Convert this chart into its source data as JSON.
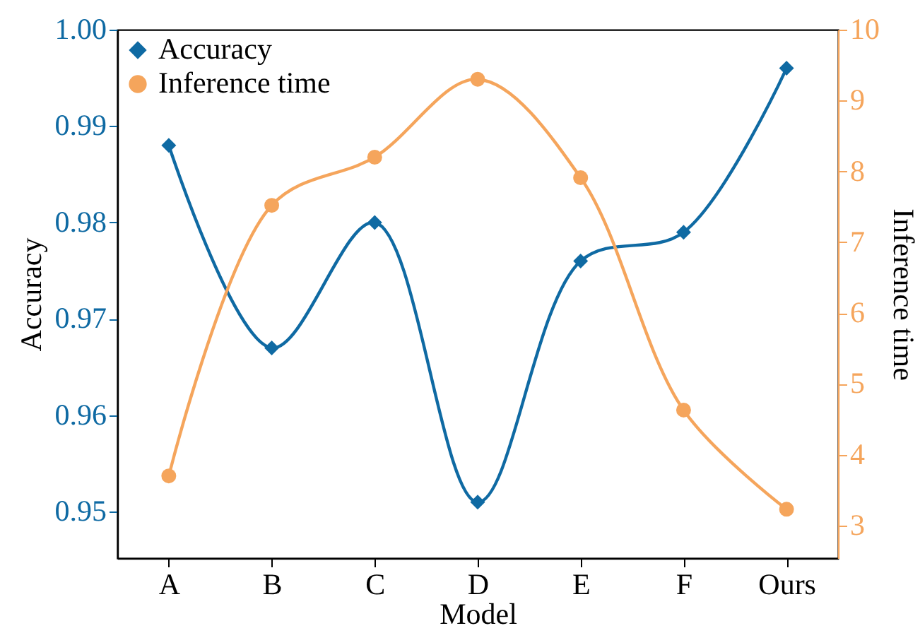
{
  "chart_data": {
    "type": "line",
    "xlabel": "Model",
    "ylabel": "Accuracy",
    "y2label": "Inference time",
    "categories": [
      "A",
      "B",
      "C",
      "D",
      "E",
      "F",
      "Ours"
    ],
    "series": [
      {
        "name": "Accuracy",
        "color": "#0f6aa3",
        "marker": "diamond",
        "values": [
          0.988,
          0.967,
          0.98,
          0.951,
          0.976,
          0.979,
          0.996
        ]
      },
      {
        "name": "Inference time",
        "color": "#f5a55c",
        "marker": "circle",
        "axis": "y2",
        "values": [
          3.7,
          7.52,
          8.2,
          9.3,
          7.91,
          4.63,
          3.23
        ]
      }
    ],
    "ylim": [
      0.9452,
      1.0
    ],
    "yticks": [
      {
        "value": 0.95,
        "label": "0.95"
      },
      {
        "value": 0.96,
        "label": "0.96"
      },
      {
        "value": 0.97,
        "label": "0.97"
      },
      {
        "value": 0.98,
        "label": "0.98"
      },
      {
        "value": 0.99,
        "label": "0.99"
      },
      {
        "value": 1.0,
        "label": "1.00"
      }
    ],
    "y2lim": [
      2.54,
      10
    ],
    "y2ticks": [
      3,
      4,
      5,
      6,
      7,
      8,
      9,
      10
    ],
    "legend": "top left",
    "grid": false,
    "line_style": "solid"
  }
}
